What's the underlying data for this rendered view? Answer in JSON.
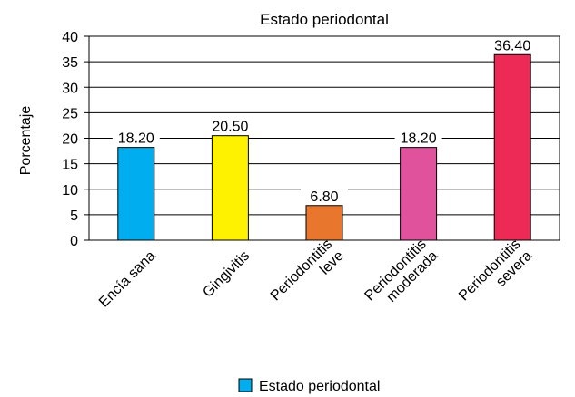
{
  "chart_data": {
    "type": "bar",
    "title": "Estado periodontal",
    "ylabel": "Porcentaje",
    "xlabel": "",
    "categories": [
      [
        "Encía sana"
      ],
      [
        "Gingivitis"
      ],
      [
        "Periodontitis",
        "leve"
      ],
      [
        "Periodontitis",
        "moderada"
      ],
      [
        "Periodontitis",
        "severa"
      ]
    ],
    "values": [
      18.2,
      20.5,
      6.8,
      18.2,
      36.4
    ],
    "value_labels": [
      "18.20",
      "20.50",
      "6.80",
      "18.20",
      "36.40"
    ],
    "bar_colors": [
      "#00aeef",
      "#fff200",
      "#e8762d",
      "#e0529c",
      "#ec2a55"
    ],
    "ylim": [
      0,
      40
    ],
    "yticks": [
      0,
      5,
      10,
      15,
      20,
      25,
      30,
      35,
      40
    ],
    "grid": true,
    "legend": {
      "placement": "bottom-center",
      "label": "Estado periodontal",
      "color": "#00aeef"
    }
  }
}
